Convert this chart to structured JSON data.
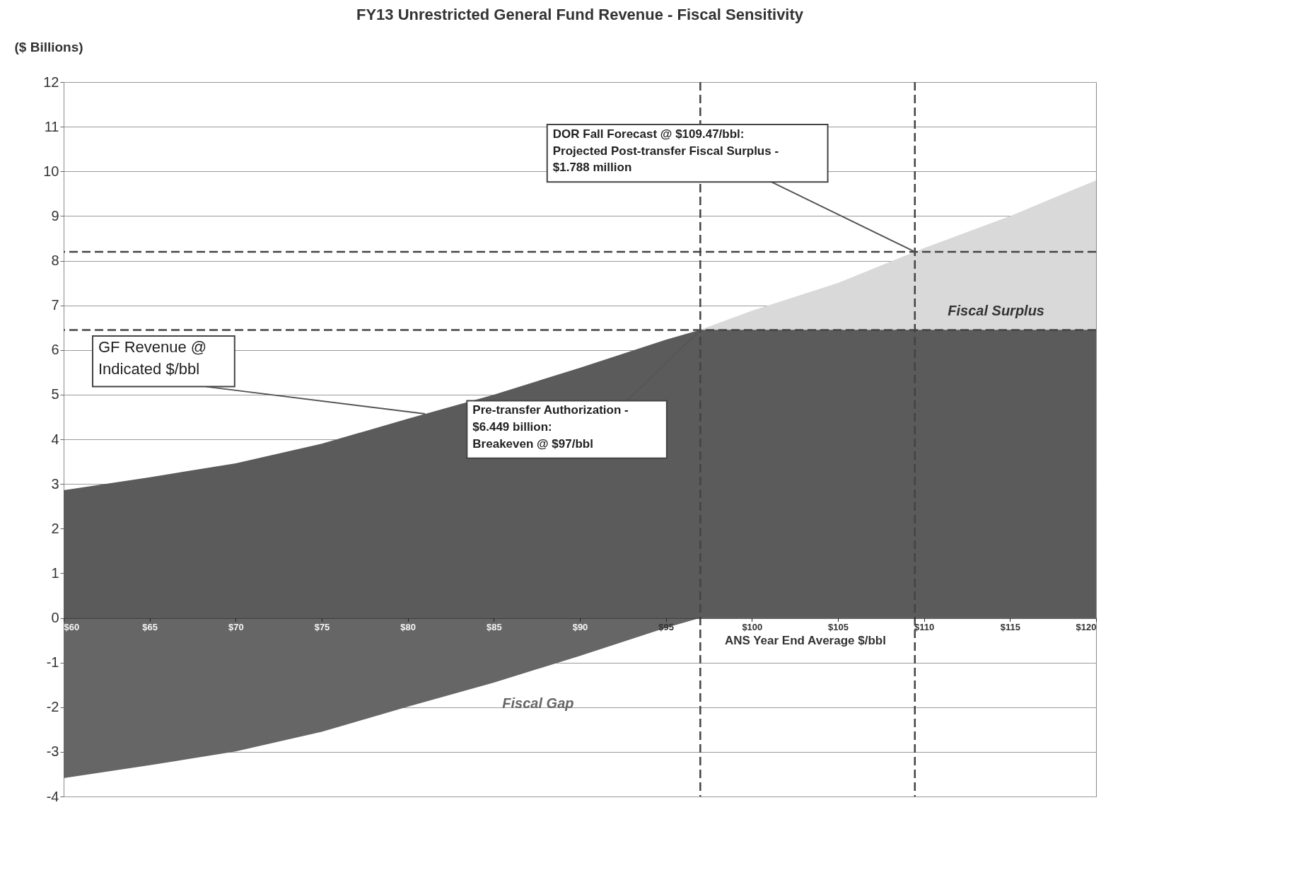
{
  "chart_data": {
    "type": "area",
    "title": "FY13 Unrestricted General Fund Revenue - Fiscal Sensitivity",
    "ylabel": "($ Billions)",
    "xlabel": "ANS Year End Average $/bbl",
    "x": [
      60,
      65,
      70,
      75,
      80,
      85,
      90,
      95,
      97,
      100,
      105,
      109.47,
      110,
      115,
      120
    ],
    "series": [
      {
        "name": "Fiscal Surplus",
        "color": "#d9d9d9",
        "values": [
          null,
          null,
          null,
          null,
          null,
          null,
          null,
          null,
          6.45,
          6.88,
          7.5,
          8.2,
          8.28,
          9.0,
          9.8
        ]
      },
      {
        "color": "#5b5b5b",
        "values": [
          2.86,
          3.15,
          3.46,
          3.9,
          4.46,
          5.0,
          5.6,
          6.23,
          6.45,
          6.45,
          6.45,
          6.45,
          6.45,
          6.45,
          6.45
        ]
      },
      {
        "name": "Fiscal Gap",
        "color": "#666666",
        "values": [
          -3.59,
          -3.3,
          -2.99,
          -2.55,
          -1.99,
          -1.45,
          -0.85,
          -0.22,
          0,
          null,
          null,
          null,
          null,
          null,
          null
        ]
      }
    ],
    "xlim": [
      60,
      120
    ],
    "xticks": [
      {
        "value": 60,
        "label": "$60"
      },
      {
        "value": 65,
        "label": "$65"
      },
      {
        "value": 70,
        "label": "$70"
      },
      {
        "value": 75,
        "label": "$75"
      },
      {
        "value": 80,
        "label": "$80"
      },
      {
        "value": 85,
        "label": "$85"
      },
      {
        "value": 90,
        "label": "$90"
      },
      {
        "value": 95,
        "label": "$95"
      },
      {
        "value": 100,
        "label": "$100"
      },
      {
        "value": 105,
        "label": "$105"
      },
      {
        "value": 110,
        "label": "$110"
      },
      {
        "value": 115,
        "label": "$115"
      },
      {
        "value": 120,
        "label": "$120"
      }
    ],
    "ylim": [
      -4,
      12
    ],
    "yticks": [
      -4,
      -3,
      -2,
      -1,
      0,
      1,
      2,
      3,
      4,
      5,
      6,
      7,
      8,
      9,
      10,
      11,
      12
    ],
    "grid": "y",
    "legend": false,
    "ref_lines": [
      {
        "axis": "y",
        "value": 8.2,
        "line_style": "dashed",
        "color": "#444444"
      },
      {
        "axis": "y",
        "value": 6.449,
        "line_style": "dashed",
        "color": "#444444"
      },
      {
        "axis": "x",
        "value": 97,
        "line_style": "dashed",
        "color": "#444444"
      },
      {
        "axis": "x",
        "value": 109.47,
        "line_style": "dashed",
        "color": "#444444"
      }
    ],
    "annotations": [
      {
        "text": "DOR Fall Forecast @ $109.47/bbl:\nProjected Post-transfer Fiscal Surplus -\n$1.788 million",
        "x": 109.47,
        "y": 8.2
      },
      {
        "text": "Pre-transfer Authorization -\n$6.449 billion:\nBreakeven @ $97/bbl",
        "x": 97,
        "y": 6.449
      },
      {
        "text": "GF Revenue @\nIndicated $/bbl",
        "x": 81,
        "y": 4.57
      }
    ]
  }
}
